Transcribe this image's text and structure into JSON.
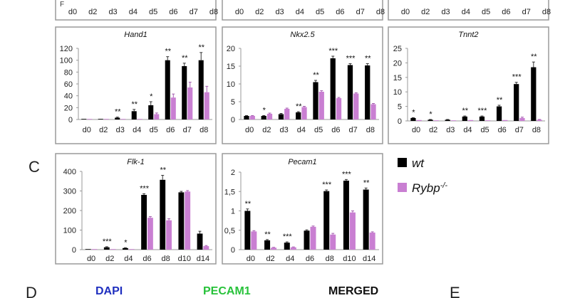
{
  "colors": {
    "wt": "#000000",
    "rybp": "#c97fd2",
    "axis": "#999999",
    "panel_border": "#9a9a9a",
    "dapi": "#1f2fbf",
    "pecam": "#27c23a",
    "merged": "#111111"
  },
  "section_labels": {
    "c": "C",
    "d": "D",
    "e": "E"
  },
  "legend": {
    "wt": "wt",
    "rybp_base": "Rybp",
    "rybp_sup": "-/-"
  },
  "bottom_headers": {
    "dapi": "DAPI",
    "pecam1": "PECAM1",
    "merged": "MERGED"
  },
  "top_partial_ticks": [
    "d0",
    "d2",
    "d3",
    "d4",
    "d5",
    "d6",
    "d7",
    "d8"
  ],
  "top_partial_ylabel_fragment": "F",
  "chart_data": [
    {
      "type": "bar",
      "title": "Hand1",
      "categories": [
        "d0",
        "d2",
        "d3",
        "d4",
        "d5",
        "d6",
        "d7",
        "d8"
      ],
      "yticks": [
        "0",
        "20",
        "40",
        "60",
        "80",
        "100",
        "120"
      ],
      "ylim": [
        0,
        120
      ],
      "series": [
        {
          "name": "wt",
          "values": [
            1,
            1,
            3,
            14,
            24,
            100,
            90,
            100
          ],
          "errors": [
            0,
            0,
            1,
            3,
            6,
            6,
            5,
            13
          ]
        },
        {
          "name": "Rybp-/-",
          "values": [
            0,
            0,
            0,
            0,
            9,
            37,
            54,
            46
          ],
          "errors": [
            0,
            0,
            0,
            0,
            2,
            6,
            9,
            10
          ]
        }
      ],
      "significance": [
        "",
        "",
        "**",
        "**",
        "*",
        "**",
        "**",
        "**"
      ]
    },
    {
      "type": "bar",
      "title": "Nkx2.5",
      "categories": [
        "d0",
        "d2",
        "d3",
        "d4",
        "d5",
        "d6",
        "d7",
        "d8"
      ],
      "yticks": [
        "0",
        "5",
        "10",
        "15",
        "20"
      ],
      "ylim": [
        0,
        20
      ],
      "series": [
        {
          "name": "wt",
          "values": [
            1,
            1,
            1.5,
            2,
            10.5,
            17.2,
            15.3,
            15.2
          ],
          "errors": [
            0.1,
            0.1,
            0.2,
            0.2,
            0.5,
            0.6,
            0.4,
            0.5
          ]
        },
        {
          "name": "Rybp-/-",
          "values": [
            1,
            1.6,
            3,
            3.5,
            7.8,
            6,
            7.3,
            4.3
          ],
          "errors": [
            0.1,
            0.2,
            0.2,
            0.2,
            0.3,
            0.2,
            0.2,
            0.2
          ]
        }
      ],
      "significance": [
        "",
        "*",
        "",
        "**",
        "**",
        "***",
        "***",
        "**"
      ]
    },
    {
      "type": "bar",
      "title": "Tnnt2",
      "categories": [
        "d0",
        "d2",
        "d3",
        "d4",
        "d5",
        "d6",
        "d7",
        "d8"
      ],
      "yticks": [
        "0",
        "5",
        "10",
        "15",
        "20",
        "25"
      ],
      "ylim": [
        0,
        25
      ],
      "series": [
        {
          "name": "wt",
          "values": [
            1,
            0.4,
            0.4,
            1.5,
            1.5,
            5,
            12.7,
            18.5
          ],
          "errors": [
            0.1,
            0.1,
            0.1,
            0.2,
            0.2,
            0.4,
            0.6,
            1.8
          ]
        },
        {
          "name": "Rybp-/-",
          "values": [
            0.3,
            0.1,
            0.1,
            0.3,
            0.2,
            0.3,
            1,
            0.4
          ],
          "errors": [
            0,
            0,
            0,
            0,
            0,
            0,
            0.3,
            0.1
          ]
        }
      ],
      "significance": [
        "*",
        "*",
        "",
        "**",
        "***",
        "**",
        "***",
        "**"
      ]
    },
    {
      "type": "bar",
      "title": "Flk-1",
      "categories": [
        "d0",
        "d2",
        "d4",
        "d6",
        "d8",
        "d10",
        "d14"
      ],
      "yticks": [
        "0",
        "100",
        "200",
        "300",
        "400"
      ],
      "ylim": [
        0,
        400
      ],
      "series": [
        {
          "name": "wt",
          "values": [
            1,
            12,
            8,
            280,
            357,
            293,
            82
          ],
          "errors": [
            0,
            3,
            2,
            6,
            23,
            5,
            12
          ]
        },
        {
          "name": "Rybp-/-",
          "values": [
            1,
            2,
            2,
            163,
            150,
            297,
            18
          ],
          "errors": [
            0,
            0,
            0,
            6,
            8,
            5,
            3
          ]
        }
      ],
      "significance": [
        "",
        "***",
        "*",
        "***",
        "**",
        "",
        ""
      ]
    },
    {
      "type": "bar",
      "title": "Pecam1",
      "categories": [
        "d0",
        "d2",
        "d4",
        "d6",
        "d8",
        "d10",
        "d14"
      ],
      "yticks": [
        "0",
        "0,5",
        "1",
        "1,5",
        "2"
      ],
      "ylim": [
        0,
        2
      ],
      "series": [
        {
          "name": "wt",
          "values": [
            1,
            0.24,
            0.18,
            0.49,
            1.51,
            1.78,
            1.55
          ],
          "errors": [
            0.05,
            0.02,
            0.02,
            0.02,
            0.03,
            0.03,
            0.04
          ]
        },
        {
          "name": "Rybp-/-",
          "values": [
            0.47,
            0.05,
            0.06,
            0.59,
            0.39,
            0.96,
            0.44
          ],
          "errors": [
            0.02,
            0.01,
            0.01,
            0.02,
            0.03,
            0.04,
            0.02
          ]
        }
      ],
      "significance": [
        "**",
        "**",
        "***",
        "",
        "***",
        "***",
        "**"
      ]
    }
  ]
}
